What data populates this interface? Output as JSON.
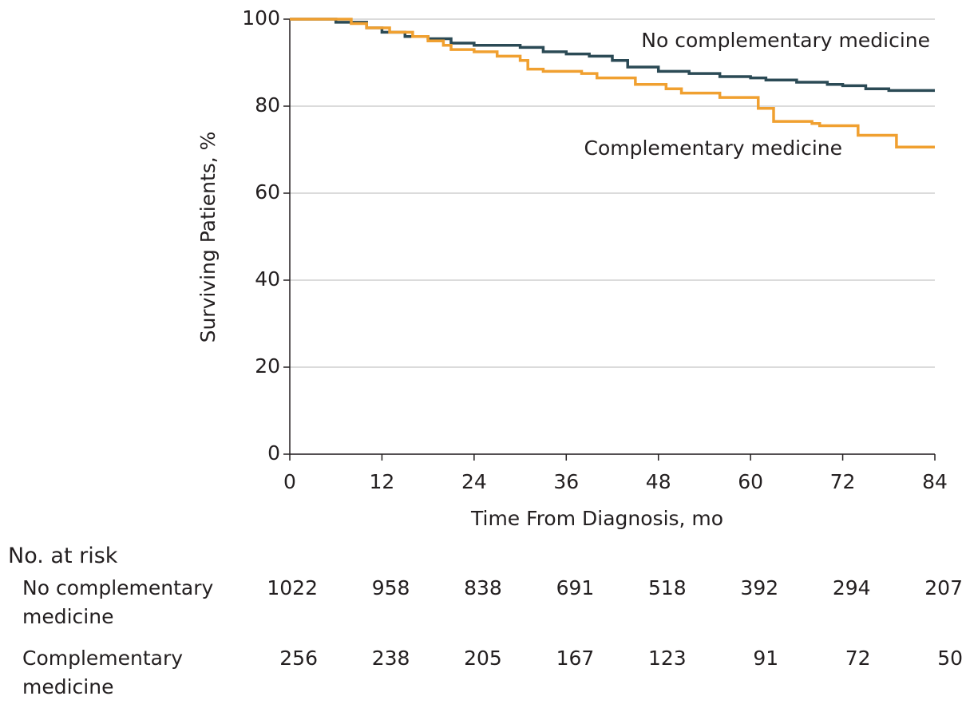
{
  "chart_data": {
    "type": "line",
    "step": true,
    "xlabel": "Time From Diagnosis, mo",
    "ylabel": "Surviving Patients, %",
    "xlim": [
      0,
      84
    ],
    "xticks": [
      0,
      12,
      24,
      36,
      48,
      60,
      72,
      84
    ],
    "ylim": [
      0,
      100
    ],
    "yticks": [
      0,
      20,
      40,
      60,
      80,
      100
    ],
    "grid": true,
    "series": [
      {
        "name": "No complementary medicine",
        "color": "#2b4a55",
        "x": [
          0,
          6,
          10,
          12,
          15,
          18,
          21,
          24,
          30,
          33,
          36,
          39,
          42,
          44,
          48,
          52,
          56,
          60,
          62,
          66,
          70,
          72,
          75,
          78,
          84
        ],
        "values": [
          100,
          99.3,
          98,
          97,
          96,
          95.5,
          94.5,
          94,
          93.5,
          92.5,
          92,
          91.5,
          90.5,
          89,
          88,
          87.5,
          86.8,
          86.5,
          86,
          85.5,
          85,
          84.7,
          84,
          83.6,
          83.6
        ]
      },
      {
        "name": "Complementary medicine",
        "color": "#f0a030",
        "x": [
          0,
          8,
          10,
          13,
          16,
          18,
          20,
          21,
          24,
          27,
          30,
          31,
          33,
          38,
          40,
          45,
          49,
          51,
          56,
          61,
          63,
          68,
          69,
          74,
          79,
          84
        ],
        "values": [
          100,
          99,
          98,
          97,
          96,
          95,
          94,
          93,
          92.5,
          91.5,
          90.5,
          88.5,
          88,
          87.5,
          86.5,
          85,
          84,
          83,
          82,
          79.5,
          76.5,
          76,
          75.5,
          73.3,
          70.6,
          70.6
        ]
      }
    ]
  },
  "risk_table": {
    "title": "No. at risk",
    "rows": [
      {
        "label": "No complementary medicine",
        "values": [
          1022,
          958,
          838,
          691,
          518,
          392,
          294,
          207
        ]
      },
      {
        "label": "Complementary medicine",
        "values": [
          256,
          238,
          205,
          167,
          123,
          91,
          72,
          50
        ]
      }
    ]
  }
}
